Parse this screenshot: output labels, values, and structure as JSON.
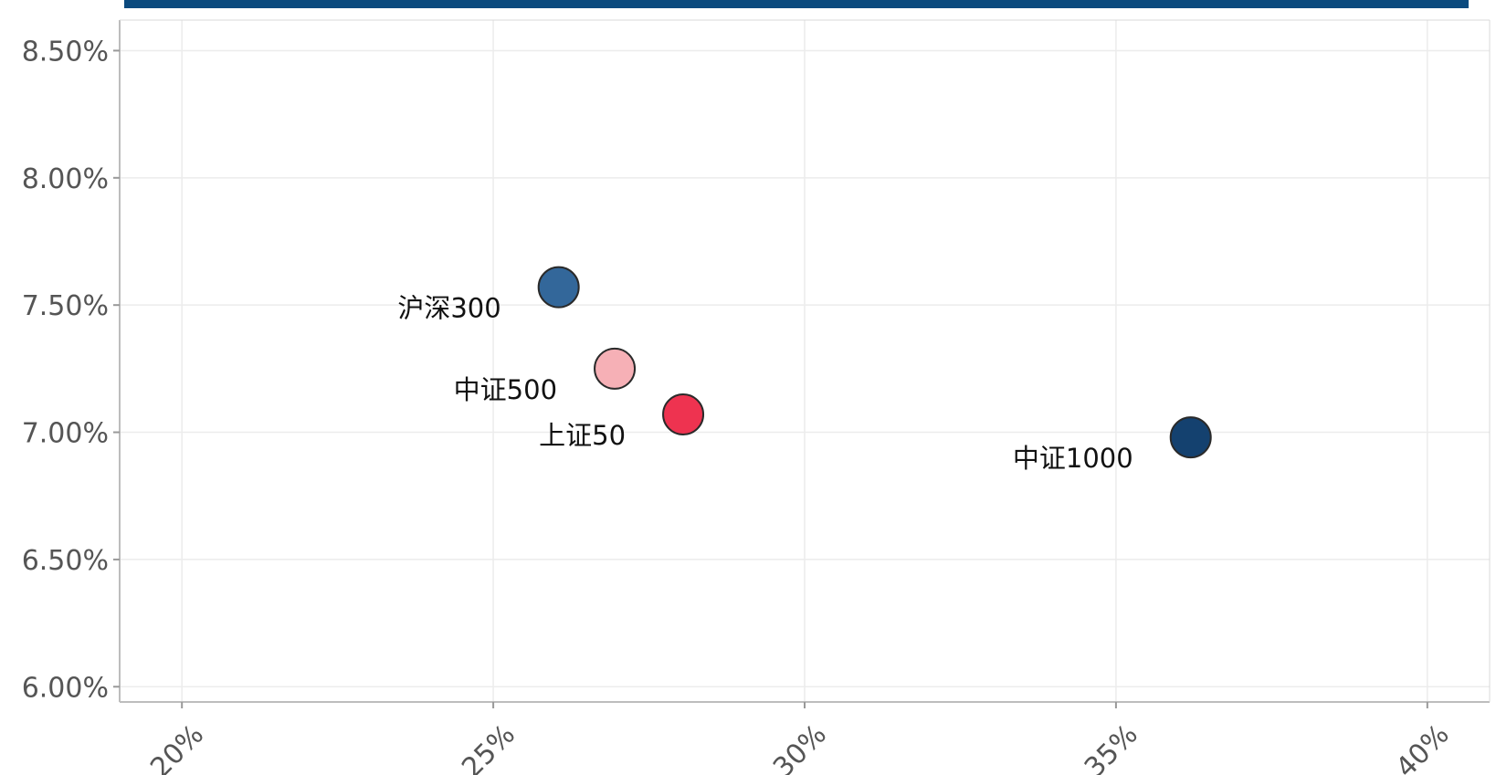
{
  "chart_data": {
    "type": "scatter",
    "title": "",
    "xlabel": "",
    "ylabel": "",
    "xlim": [
      19,
      41
    ],
    "ylim": [
      5.94,
      8.62
    ],
    "x_ticks": [
      "20%",
      "25%",
      "30%",
      "35%",
      "40%"
    ],
    "x_tick_values": [
      20,
      25,
      30,
      35,
      40
    ],
    "y_ticks": [
      "6.00%",
      "6.50%",
      "7.00%",
      "7.50%",
      "8.00%",
      "8.50%"
    ],
    "y_tick_values": [
      6.0,
      6.5,
      7.0,
      7.5,
      8.0,
      8.5
    ],
    "grid": true,
    "points": [
      {
        "label": "沪深300",
        "x": 26.05,
        "y": 7.57,
        "color": "#33679a"
      },
      {
        "label": "中证500",
        "x": 26.95,
        "y": 7.25,
        "color": "#f6b0b6"
      },
      {
        "label": "上证50",
        "x": 28.05,
        "y": 7.07,
        "color": "#ee3350"
      },
      {
        "label": "中证1000",
        "x": 36.2,
        "y": 6.98,
        "color": "#14416f"
      }
    ]
  },
  "colors": {
    "header_bar": "#0b4a7e",
    "grid": "#ececec",
    "panel_border": "#bdbdbd"
  }
}
